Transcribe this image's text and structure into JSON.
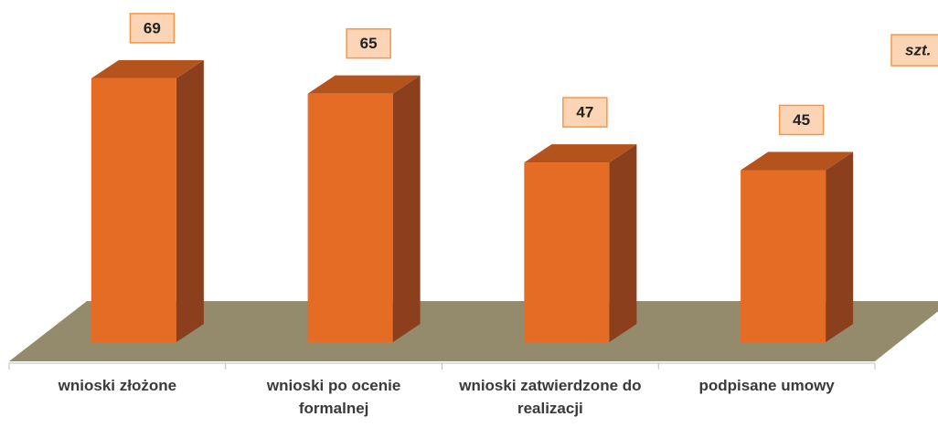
{
  "chart_data": {
    "type": "bar3d",
    "unit": "szt.",
    "categories": [
      "wnioski złożone",
      "wnioski po ocenie formalnej",
      "wnioski zatwierdzone do realizacji",
      "podpisane umowy"
    ],
    "values": [
      69,
      65,
      47,
      45
    ],
    "colors": {
      "front": "#e46c24",
      "top": "#b5531d",
      "side": "#8c3f1d",
      "label_fill": "#fbd5b5",
      "label_border": "#f79646"
    }
  }
}
